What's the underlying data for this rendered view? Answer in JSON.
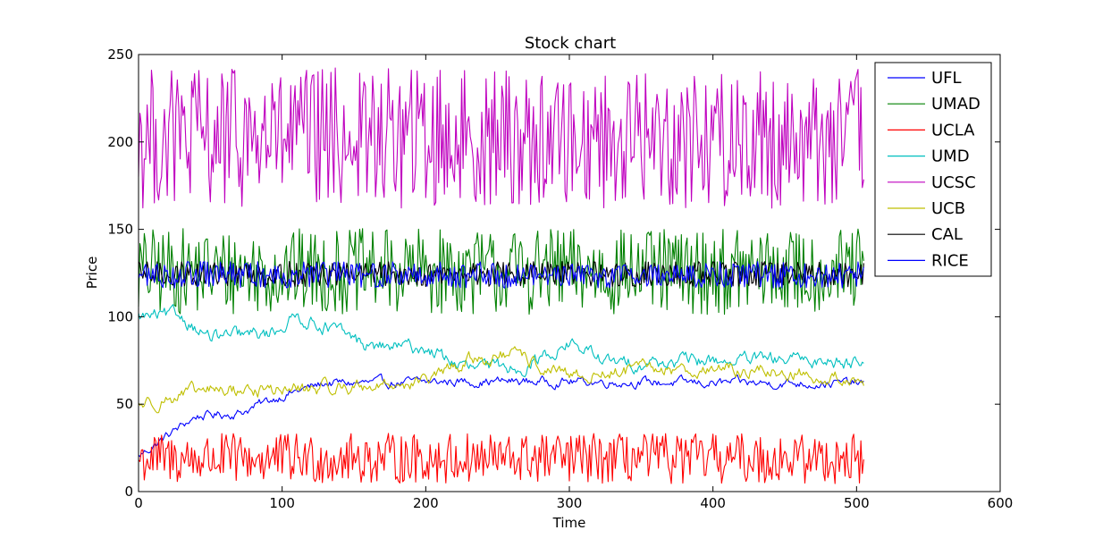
{
  "chart_data": {
    "type": "line",
    "title": "Stock chart",
    "xlabel": "Time",
    "ylabel": "Price",
    "xlim": [
      0,
      600
    ],
    "ylim": [
      0,
      250
    ],
    "xticks": [
      0,
      100,
      200,
      300,
      400,
      500,
      600
    ],
    "yticks": [
      0,
      50,
      100,
      150,
      200,
      250
    ],
    "grid": false,
    "legend_position": "top-right",
    "series_length": 506,
    "series": [
      {
        "name": "UFL",
        "color": "#0000ff",
        "profile": "rising",
        "anchors": [
          [
            0,
            20
          ],
          [
            20,
            32
          ],
          [
            40,
            43
          ],
          [
            70,
            45
          ],
          [
            100,
            55
          ],
          [
            130,
            62
          ],
          [
            170,
            62
          ],
          [
            220,
            63
          ],
          [
            300,
            63
          ],
          [
            400,
            62
          ],
          [
            505,
            62
          ]
        ],
        "noise": 2
      },
      {
        "name": "UMAD",
        "color": "#008000",
        "profile": "volatile",
        "center": 125,
        "range": [
          97,
          155
        ]
      },
      {
        "name": "UCLA",
        "color": "#ff0000",
        "profile": "volatile",
        "center": 18,
        "range": [
          2,
          36
        ]
      },
      {
        "name": "UMD",
        "color": "#00bfbf",
        "profile": "falling",
        "anchors": [
          [
            0,
            100
          ],
          [
            30,
            100
          ],
          [
            50,
            88
          ],
          [
            90,
            90
          ],
          [
            110,
            100
          ],
          [
            130,
            95
          ],
          [
            160,
            83
          ],
          [
            200,
            82
          ],
          [
            230,
            70
          ],
          [
            270,
            72
          ],
          [
            300,
            85
          ],
          [
            330,
            73
          ],
          [
            400,
            75
          ],
          [
            505,
            75
          ]
        ],
        "noise": 3
      },
      {
        "name": "UCSC",
        "color": "#bf00bf",
        "profile": "volatile",
        "center": 200,
        "range": [
          155,
          250
        ]
      },
      {
        "name": "UCB",
        "color": "#bfbf00",
        "profile": "rising",
        "anchors": [
          [
            0,
            50
          ],
          [
            50,
            58
          ],
          [
            100,
            58
          ],
          [
            150,
            60
          ],
          [
            200,
            63
          ],
          [
            230,
            75
          ],
          [
            260,
            78
          ],
          [
            300,
            65
          ],
          [
            350,
            70
          ],
          [
            400,
            70
          ],
          [
            450,
            68
          ],
          [
            505,
            63
          ]
        ],
        "noise": 3
      },
      {
        "name": "CAL",
        "color": "#000000",
        "profile": "volatile",
        "center": 124,
        "range": [
          116,
          133
        ]
      },
      {
        "name": "RICE",
        "color": "#0000ff",
        "profile": "volatile",
        "center": 124,
        "range": [
          115,
          133
        ]
      }
    ]
  }
}
